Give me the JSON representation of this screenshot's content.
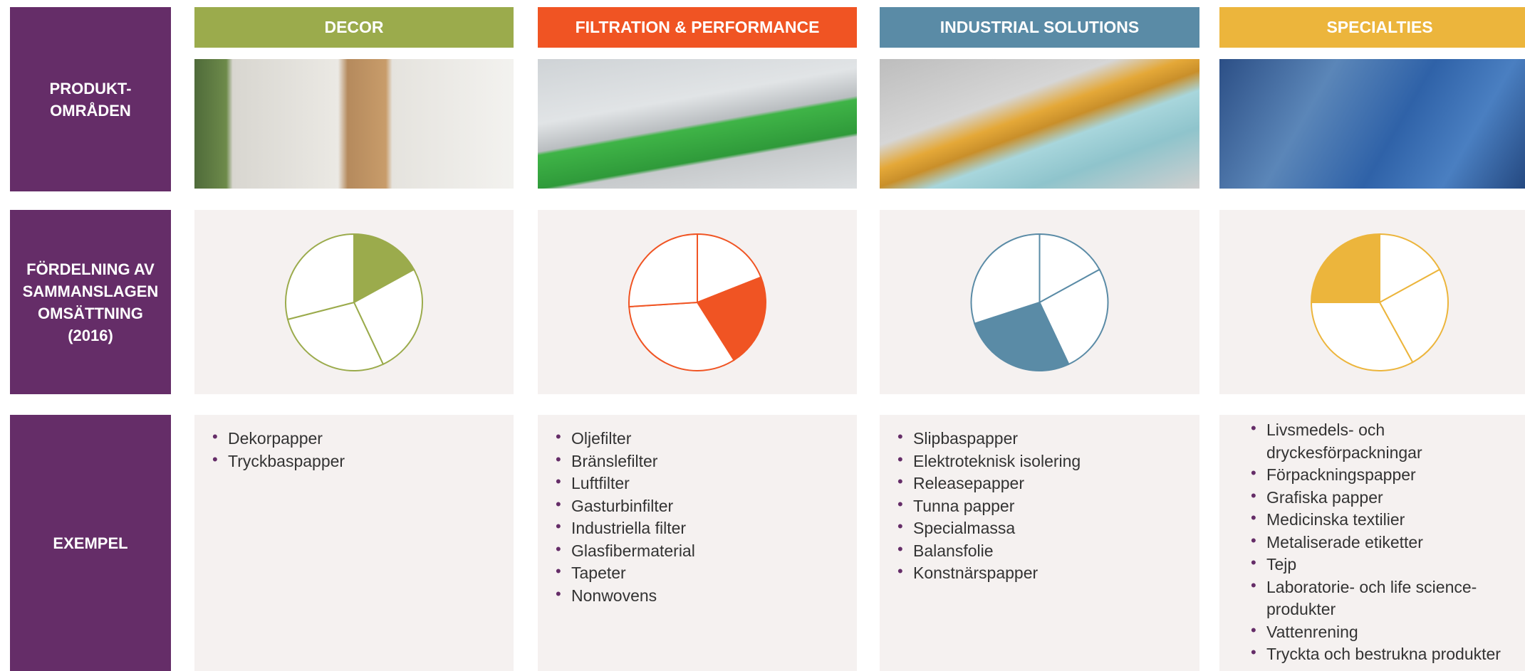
{
  "row_labels": [
    "PRODUKT-OMRÅDEN",
    "FÖRDELNING AV SAMMANSLAGEN OMSÄTTNING (2016)",
    "EXEMPEL"
  ],
  "columns": [
    {
      "title": "DECOR",
      "color": "#9bab4c",
      "pie": {
        "type": "pie",
        "values": [
          17,
          26,
          28,
          29
        ],
        "highlight": 0
      },
      "examples": [
        "Dekorpapper",
        "Tryckbaspapper"
      ]
    },
    {
      "title": "FILTRATION & PERFORMANCE",
      "color": "#f05423",
      "pie": {
        "type": "pie",
        "values": [
          19,
          22,
          33,
          26
        ],
        "highlight": 1
      },
      "examples": [
        "Oljefilter",
        "Bränslefilter",
        "Luftfilter",
        "Gasturbinfilter",
        "Industriella filter",
        "Glasfibermaterial",
        "Tapeter",
        "Nonwovens"
      ]
    },
    {
      "title": "INDUSTRIAL SOLUTIONS",
      "color": "#5a8ba6",
      "pie": {
        "type": "pie",
        "values": [
          17,
          26,
          27,
          30
        ],
        "highlight": 2
      },
      "examples": [
        "Slipbaspapper",
        "Elektroteknisk isolering",
        "Releasepapper",
        "Tunna papper",
        "Specialmassa",
        "Balansfolie",
        "Konstnärspapper"
      ]
    },
    {
      "title": "SPECIALTIES",
      "color": "#ecb53c",
      "pie": {
        "type": "pie",
        "values": [
          17,
          25,
          33,
          25
        ],
        "highlight": 3
      },
      "examples": [
        "Livsmedels- och dryckesförpackningar",
        "Förpackningspapper",
        "Grafiska papper",
        "Medicinska textilier",
        "Metaliserade etiketter",
        "Tejp",
        "Laboratorie- och life science-produkter",
        "Vattenrening",
        "Tryckta och bestrukna produkter"
      ]
    }
  ]
}
